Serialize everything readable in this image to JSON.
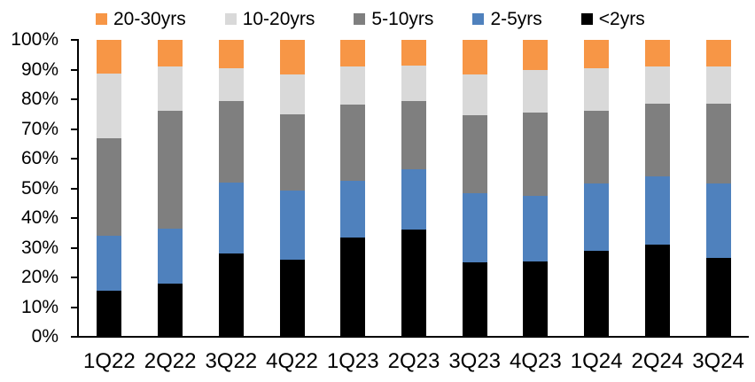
{
  "chart_data": {
    "type": "bar",
    "variant": "stacked-100-percent",
    "title": "",
    "xlabel": "",
    "ylabel": "",
    "ylim": [
      0,
      100
    ],
    "grid": false,
    "legend_position": "top",
    "legend_order": [
      "20-30yrs",
      "10-20yrs",
      "5-10yrs",
      "2-5yrs",
      "<2yrs"
    ],
    "y_ticks": [
      "100%",
      "90%",
      "80%",
      "70%",
      "60%",
      "50%",
      "40%",
      "30%",
      "20%",
      "10%",
      "0%"
    ],
    "categories": [
      "1Q22",
      "2Q22",
      "3Q22",
      "4Q22",
      "1Q23",
      "2Q23",
      "3Q23",
      "4Q23",
      "1Q24",
      "2Q24",
      "3Q24"
    ],
    "series": [
      {
        "name": "<2yrs",
        "color": "#000000",
        "values": [
          15.4,
          18.0,
          28.0,
          26.0,
          33.5,
          36.0,
          25.0,
          25.5,
          29.0,
          31.0,
          26.5
        ]
      },
      {
        "name": "2-5yrs",
        "color": "#4F81BD",
        "values": [
          18.6,
          18.5,
          24.0,
          23.3,
          19.0,
          20.5,
          23.5,
          22.0,
          22.5,
          23.0,
          25.0
        ]
      },
      {
        "name": "5-10yrs",
        "color": "#7F7F7F",
        "values": [
          33.0,
          39.5,
          27.5,
          25.7,
          25.8,
          23.0,
          26.0,
          28.0,
          24.5,
          24.5,
          27.0
        ]
      },
      {
        "name": "10-20yrs",
        "color": "#D9D9D9",
        "values": [
          21.7,
          15.0,
          11.0,
          13.3,
          12.7,
          12.0,
          14.0,
          14.5,
          14.5,
          12.5,
          12.5
        ]
      },
      {
        "name": "20-30yrs",
        "color": "#F79646",
        "values": [
          11.3,
          9.0,
          9.5,
          11.7,
          9.0,
          8.5,
          11.5,
          10.0,
          9.5,
          9.0,
          9.0
        ]
      }
    ]
  },
  "colors": {
    "axis": "#000000",
    "text": "#000000",
    "background": "#FFFFFF"
  }
}
